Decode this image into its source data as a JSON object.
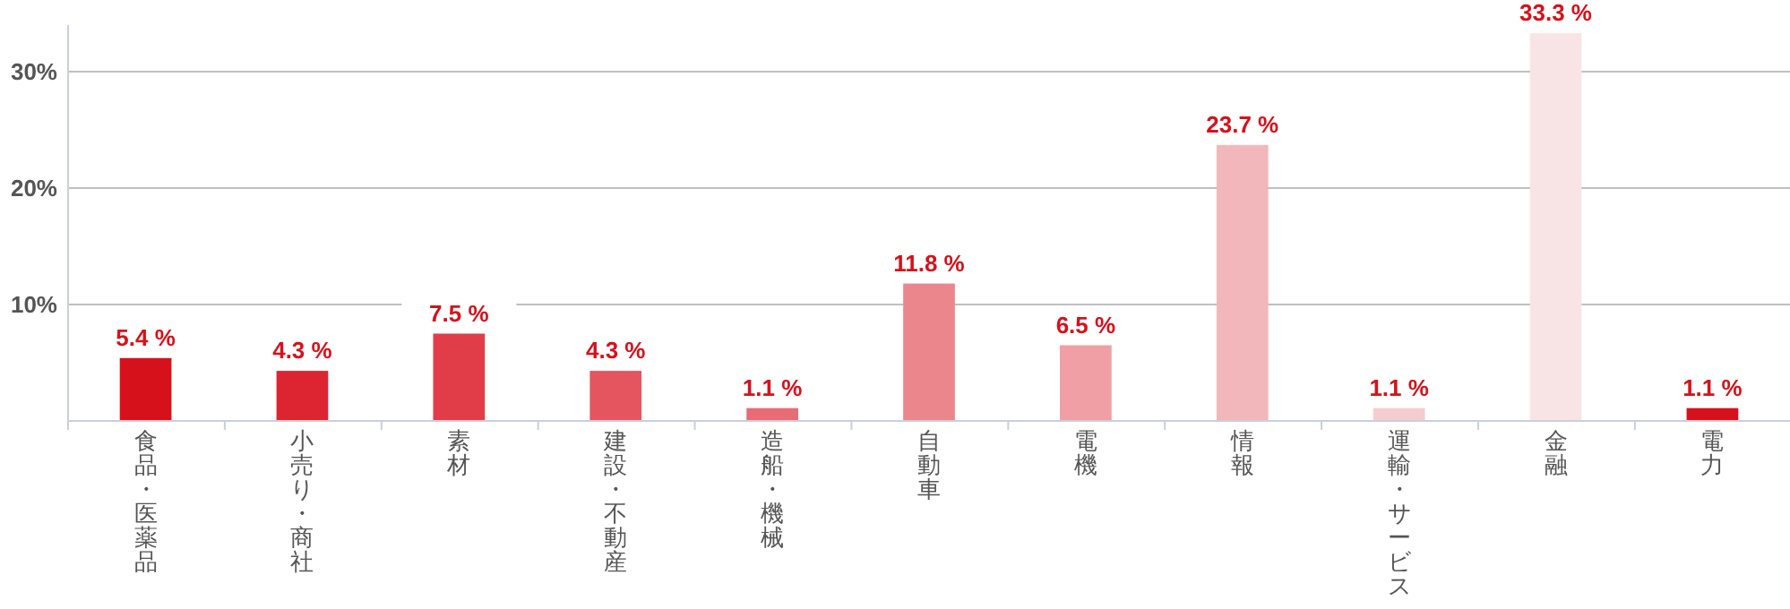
{
  "chart_data": {
    "type": "bar",
    "categories": [
      "食品・医薬品",
      "小売り・商社",
      "素材",
      "建設・不動産",
      "造船・機械",
      "自動車",
      "電機",
      "情報",
      "運輸・サービス",
      "金融",
      "電力"
    ],
    "values": [
      5.4,
      4.3,
      7.5,
      4.3,
      1.1,
      11.8,
      6.5,
      23.7,
      1.1,
      33.3,
      1.1
    ],
    "value_labels": [
      "5.4 %",
      "4.3 %",
      "7.5 %",
      "4.3 %",
      "1.1 %",
      "11.8 %",
      "6.5 %",
      "23.7 %",
      "1.1 %",
      "33.3 %",
      "1.1 %"
    ],
    "colors": [
      "#d7111b",
      "#dd2532",
      "#e13d48",
      "#e45560",
      "#e86c75",
      "#ec868d",
      "#f09fa4",
      "#f2b7ba",
      "#f5ccd0",
      "#f9e4e5",
      "#d7111b"
    ],
    "ylim": [
      0,
      34
    ],
    "yticks": [
      {
        "value": 10,
        "label": "10%"
      },
      {
        "value": 20,
        "label": "20%"
      },
      {
        "value": 30,
        "label": "30%"
      }
    ],
    "grid": "y"
  }
}
